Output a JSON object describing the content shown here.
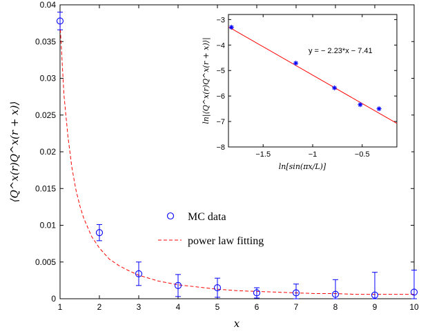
{
  "chart_data": [
    {
      "type": "scatter",
      "xlabel": "x",
      "ylabel": "⟨Q^x(r)Q^x(r + x)⟩",
      "xlim": [
        1,
        10
      ],
      "ylim": [
        0,
        0.04
      ],
      "xticks": [
        1,
        2,
        3,
        4,
        5,
        6,
        7,
        8,
        9,
        10
      ],
      "xtick_labels": [
        "1",
        "2",
        "3",
        "4",
        "5",
        "6",
        "7",
        "8",
        "9",
        "10"
      ],
      "yticks": [
        0,
        0.005,
        0.01,
        0.015,
        0.02,
        0.025,
        0.03,
        0.035,
        0.04
      ],
      "ytick_labels": [
        "0",
        "0.005",
        "0.01",
        "0.015",
        "0.02",
        "0.025",
        "0.03",
        "0.035",
        "0.04"
      ],
      "grid": false,
      "legend": {
        "placement": "center",
        "entries": [
          "MC data",
          "power law fitting"
        ]
      },
      "colors": {
        "data": "#0000ff",
        "fit": "#ff0000"
      },
      "series": [
        {
          "name": "MC data",
          "style": "circle-markers-with-errorbars",
          "x": [
            1,
            2,
            3,
            4,
            5,
            6,
            7,
            8,
            9,
            10
          ],
          "y": [
            0.0378,
            0.009,
            0.0034,
            0.0018,
            0.0015,
            0.0008,
            0.0008,
            0.0006,
            0.0005,
            0.0009
          ],
          "error": [
            0.0012,
            0.0011,
            0.0016,
            0.0015,
            0.0013,
            0.0007,
            0.0012,
            0.002,
            0.0031,
            0.003
          ]
        },
        {
          "name": "power law fitting",
          "style": "dashed-line",
          "x": [
            1,
            1.1,
            1.2,
            1.3,
            1.4,
            1.5,
            1.6,
            1.8,
            2,
            2.25,
            2.5,
            2.75,
            3,
            3.5,
            4,
            4.5,
            5,
            5.5,
            6,
            6.5,
            7,
            7.5,
            8,
            8.5,
            9,
            9.5,
            10
          ],
          "y": [
            0.0374,
            0.0277,
            0.0221,
            0.0179,
            0.0149,
            0.0127,
            0.011,
            0.0085,
            0.0069,
            0.0054,
            0.0045,
            0.0038,
            0.0032,
            0.0024,
            0.0019,
            0.0016,
            0.0013,
            0.0011,
            0.001,
            0.0009,
            0.0008,
            0.0007,
            0.0007,
            0.0006,
            0.0006,
            0.0006,
            0.0006
          ]
        }
      ]
    },
    {
      "type": "scatter",
      "xlabel": "ln[sin(πx/L)]",
      "ylabel": "ln|⟨Q^x(r)Q^x(r + x)⟩|",
      "xlim": [
        -1.85,
        -0.15
      ],
      "ylim": [
        -8,
        -2.8
      ],
      "xticks": [
        -1.5,
        -1,
        -0.5
      ],
      "xtick_labels": [
        "−1.5",
        "−1",
        "−0.5"
      ],
      "yticks": [
        -8,
        -7,
        -6,
        -5,
        -4,
        -3
      ],
      "ytick_labels": [
        "−8",
        "−7",
        "−6",
        "−5",
        "−4",
        "−3"
      ],
      "grid": false,
      "colors": {
        "data": "#0000ff",
        "fit": "#ff0000"
      },
      "annotation": "y = − 2.23*x − 7.41",
      "fit": {
        "slope": -2.23,
        "intercept": -7.41
      },
      "series": [
        {
          "style": "star-markers",
          "x": [
            -1.82,
            -1.17,
            -0.78,
            -0.52,
            -0.33
          ],
          "y": [
            -3.3,
            -4.71,
            -5.68,
            -6.34,
            -6.5
          ]
        }
      ]
    }
  ]
}
